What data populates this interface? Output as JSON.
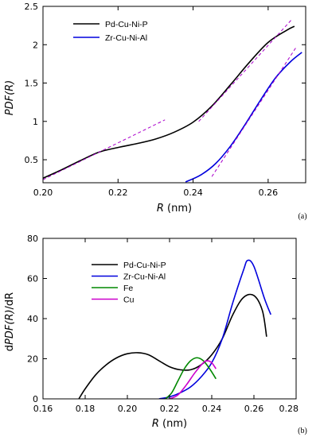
{
  "chart_data": [
    {
      "type": "line",
      "panel_label": "(a)",
      "xlabel": {
        "italic": "R",
        "rest": " (nm)"
      },
      "ylabel": {
        "pre": "",
        "italic": "PDF(R)",
        "post": ""
      },
      "xlim": [
        0.2,
        0.27
      ],
      "ylim": [
        0.2,
        2.5
      ],
      "x_ticks": [
        0.2,
        0.22,
        0.24,
        0.26
      ],
      "x_tick_labels": [
        "0.20",
        "0.22",
        "0.24",
        "0.26"
      ],
      "y_ticks": [
        0.5,
        1,
        1.5,
        2,
        2.5
      ],
      "y_tick_labels": [
        "0.5",
        "1",
        "1.5",
        "2",
        "2.5"
      ],
      "legend_position": "top-left",
      "series": [
        {
          "name": "Pd-Cu-Ni-P",
          "color": "#000000",
          "x": [
            0.2,
            0.205,
            0.21,
            0.215,
            0.22,
            0.225,
            0.23,
            0.235,
            0.24,
            0.245,
            0.25,
            0.255,
            0.26,
            0.265,
            0.267
          ],
          "y": [
            0.26,
            0.37,
            0.49,
            0.6,
            0.66,
            0.71,
            0.77,
            0.86,
            0.99,
            1.2,
            1.48,
            1.77,
            2.03,
            2.19,
            2.24
          ]
        },
        {
          "name": "Zr-Cu-Ni-Al",
          "color": "#0000dd",
          "x": [
            0.238,
            0.242,
            0.246,
            0.25,
            0.254,
            0.258,
            0.262,
            0.266,
            0.269
          ],
          "y": [
            0.21,
            0.3,
            0.45,
            0.68,
            0.97,
            1.28,
            1.57,
            1.78,
            1.9
          ]
        }
      ],
      "tangents": [
        {
          "color": "#aa00cc",
          "x": [
            0.2,
            0.2325
          ],
          "y": [
            0.24,
            1.02
          ]
        },
        {
          "color": "#aa00cc",
          "x": [
            0.2415,
            0.2665
          ],
          "y": [
            1.0,
            2.34
          ]
        },
        {
          "color": "#aa00cc",
          "x": [
            0.245,
            0.2675
          ],
          "y": [
            0.28,
            1.97
          ]
        }
      ]
    },
    {
      "type": "line",
      "panel_label": "(b)",
      "xlabel": {
        "italic": "R",
        "rest": " (nm)"
      },
      "ylabel": {
        "pre": "d",
        "italic": "PDF(R)",
        "post": "/dR"
      },
      "xlim": [
        0.16,
        0.28
      ],
      "ylim": [
        0,
        80
      ],
      "x_ticks": [
        0.16,
        0.18,
        0.2,
        0.22,
        0.24,
        0.26,
        0.28
      ],
      "x_tick_labels": [
        "0.16",
        "0.18",
        "0.20",
        "0.22",
        "0.24",
        "0.26",
        "0.28"
      ],
      "y_ticks": [
        0,
        20,
        40,
        60,
        80
      ],
      "y_tick_labels": [
        "0",
        "20",
        "40",
        "60",
        "80"
      ],
      "legend_position": "top-center",
      "series": [
        {
          "name": "Pd-Cu-Ni-P",
          "color": "#000000",
          "x": [
            0.177,
            0.18,
            0.185,
            0.19,
            0.195,
            0.2,
            0.205,
            0.21,
            0.215,
            0.22,
            0.225,
            0.23,
            0.235,
            0.24,
            0.245,
            0.25,
            0.255,
            0.26,
            0.264,
            0.266
          ],
          "y": [
            0,
            5,
            12,
            17,
            20.5,
            22.5,
            23,
            22,
            19,
            16,
            14.5,
            14.5,
            17,
            22,
            30,
            42,
            50.5,
            51.5,
            44,
            31
          ]
        },
        {
          "name": "Zr-Cu-Ni-Al",
          "color": "#0000dd",
          "x": [
            0.215,
            0.22,
            0.225,
            0.23,
            0.235,
            0.24,
            0.245,
            0.25,
            0.255,
            0.257,
            0.26,
            0.265,
            0.268
          ],
          "y": [
            0,
            1,
            3,
            6,
            11,
            18,
            30,
            48,
            64,
            69,
            66,
            50,
            42
          ]
        },
        {
          "name": "Fe",
          "color": "#008800",
          "x": [
            0.218,
            0.221,
            0.224,
            0.227,
            0.23,
            0.233,
            0.236,
            0.239,
            0.242
          ],
          "y": [
            0,
            3,
            9,
            15,
            19,
            20.5,
            19,
            15,
            10
          ]
        },
        {
          "name": "Cu",
          "color": "#cc00cc",
          "x": [
            0.22,
            0.224,
            0.228,
            0.232,
            0.236,
            0.238,
            0.24,
            0.242
          ],
          "y": [
            0,
            2,
            7,
            13,
            18,
            19,
            18,
            15
          ]
        }
      ]
    }
  ]
}
